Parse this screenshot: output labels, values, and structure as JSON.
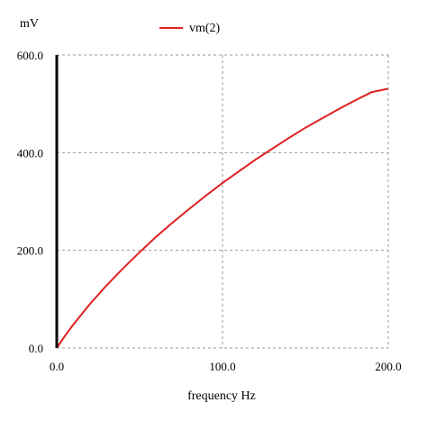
{
  "chart_data": {
    "type": "line",
    "ylabel": "mV",
    "xlabel": "frequency Hz",
    "xlim": [
      0,
      200
    ],
    "ylim": [
      0,
      600
    ],
    "x_ticks": [
      "0.0",
      "100.0",
      "200.0"
    ],
    "y_ticks": [
      "0.0",
      "200.0",
      "400.0",
      "600.0"
    ],
    "grid": true,
    "legend_position": "top-center",
    "series": [
      {
        "name": "vm(2)",
        "color": "#e02020",
        "x": [
          0,
          5,
          10,
          20,
          30,
          40,
          50,
          60,
          70,
          80,
          90,
          100,
          110,
          120,
          130,
          140,
          150,
          160,
          170,
          180,
          190,
          200
        ],
        "y": [
          0,
          25,
          48,
          90,
          128,
          163,
          196,
          228,
          257,
          285,
          312,
          338,
          362,
          386,
          408,
          430,
          451,
          470,
          489,
          507,
          524,
          531
        ]
      }
    ]
  }
}
